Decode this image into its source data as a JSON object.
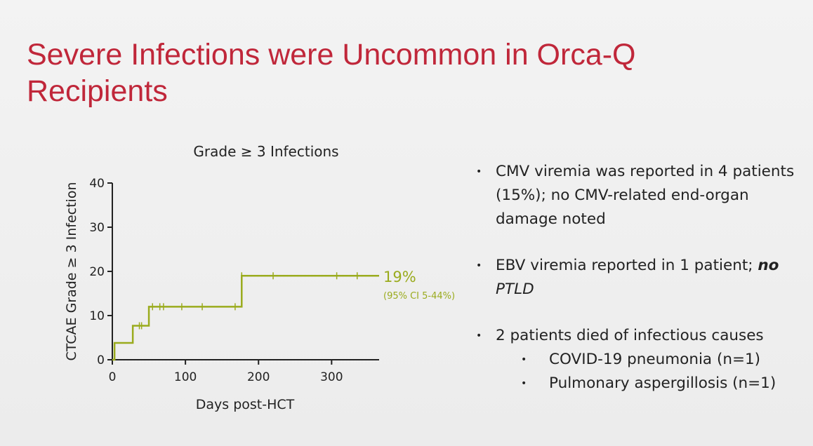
{
  "slide": {
    "title": "Severe Infections were Uncommon in Orca-Q Recipients"
  },
  "bullets": {
    "b1": "CMV viremia was reported in 4 patients (15%); no CMV-related end-organ damage noted",
    "b2_plain": "EBV viremia reported in 1 patient;",
    "b2_bold": "no",
    "b2_italic": "PTLD",
    "b3": "2 patients died of infectious causes",
    "b3_sub1": "COVID-19 pneumonia (n=1)",
    "b3_sub2": "Pulmonary aspergillosis (n=1)",
    "marker": "•"
  },
  "chart_data": {
    "type": "line",
    "title": "Grade ≥ 3 Infections",
    "xlabel": "Days post-HCT",
    "ylabel": "CTCAE Grade ≥ 3 Infection",
    "xlim": [
      0,
      365
    ],
    "ylim": [
      0,
      40
    ],
    "xticks": [
      0,
      100,
      200,
      300
    ],
    "yticks": [
      0,
      10,
      20,
      30,
      40
    ],
    "series": [
      {
        "step_x": [
          0,
          3,
          3,
          28,
          28,
          50,
          50,
          177,
          177,
          365
        ],
        "step_y": [
          0,
          0,
          3.8,
          3.8,
          7.7,
          7.7,
          12.0,
          12.0,
          19.0,
          19.0
        ],
        "censor_x": [
          37,
          40,
          55,
          65,
          70,
          95,
          123,
          168,
          177,
          220,
          307,
          335
        ],
        "color": "#9aab1d"
      }
    ],
    "annotation": {
      "value": "19%",
      "ci": "(95% CI 5-44%)"
    },
    "grid": false
  }
}
